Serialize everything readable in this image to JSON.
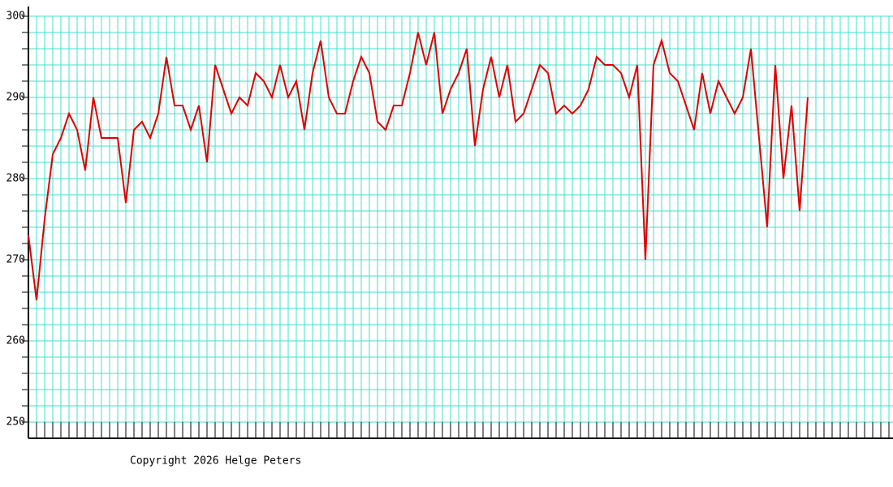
{
  "chart_data": {
    "type": "line",
    "footer": "Copyright 2026 Helge Peters",
    "series": [
      {
        "color": "#e00000",
        "values": [
          273,
          265,
          275,
          283,
          285,
          288,
          286,
          281,
          290,
          285,
          285,
          285,
          277,
          286,
          287,
          285,
          288,
          295,
          289,
          289,
          286,
          289,
          282,
          294,
          291,
          288,
          290,
          289,
          293,
          292,
          290,
          294,
          290,
          292,
          286,
          293,
          297,
          290,
          288,
          288,
          292,
          295,
          293,
          287,
          286,
          289,
          289,
          293,
          298,
          294,
          298,
          288,
          291,
          293,
          296,
          284,
          291,
          295,
          290,
          294,
          287,
          288,
          291,
          294,
          293,
          288,
          289,
          288,
          289,
          291,
          295,
          294,
          294,
          293,
          290,
          294,
          270,
          294,
          297,
          293,
          292,
          289,
          286,
          293,
          288,
          292,
          290,
          288,
          290,
          296,
          285,
          274,
          294,
          280,
          289,
          276,
          290
        ]
      }
    ],
    "xlim": [
      0,
      106.5
    ],
    "xticks": [
      0,
      1,
      2,
      3,
      4,
      5,
      6,
      7,
      8,
      9,
      10,
      11,
      12,
      13,
      14,
      15,
      16,
      17,
      18,
      19,
      20,
      21,
      22,
      23,
      24,
      25,
      26,
      27,
      28,
      29,
      30,
      31,
      32,
      33,
      34,
      35,
      36,
      37,
      38,
      39,
      40,
      41,
      42,
      43,
      44,
      45,
      46,
      47,
      48,
      49,
      50,
      51,
      52,
      53,
      54,
      55,
      56,
      57,
      58,
      59,
      60,
      61,
      62,
      63,
      64,
      65,
      66,
      67,
      68,
      69,
      70,
      71,
      72,
      73,
      74,
      75,
      76,
      77,
      78,
      79,
      80,
      81,
      82,
      83,
      84,
      85,
      86,
      87,
      88,
      89,
      90,
      91,
      92,
      93,
      94,
      95,
      96,
      97,
      98,
      99,
      100,
      101,
      102,
      103,
      104,
      105,
      106
    ],
    "ylim": [
      248,
      301.2
    ],
    "yticks": [
      250,
      260,
      270,
      280,
      290,
      300
    ],
    "y_minor_ticks": [
      250,
      252,
      254,
      256,
      258,
      260,
      262,
      264,
      266,
      268,
      270,
      272,
      274,
      276,
      278,
      280,
      282,
      284,
      286,
      288,
      290,
      292,
      294,
      296,
      298,
      300
    ],
    "grid": true,
    "grid_color": "#40e0d0"
  }
}
